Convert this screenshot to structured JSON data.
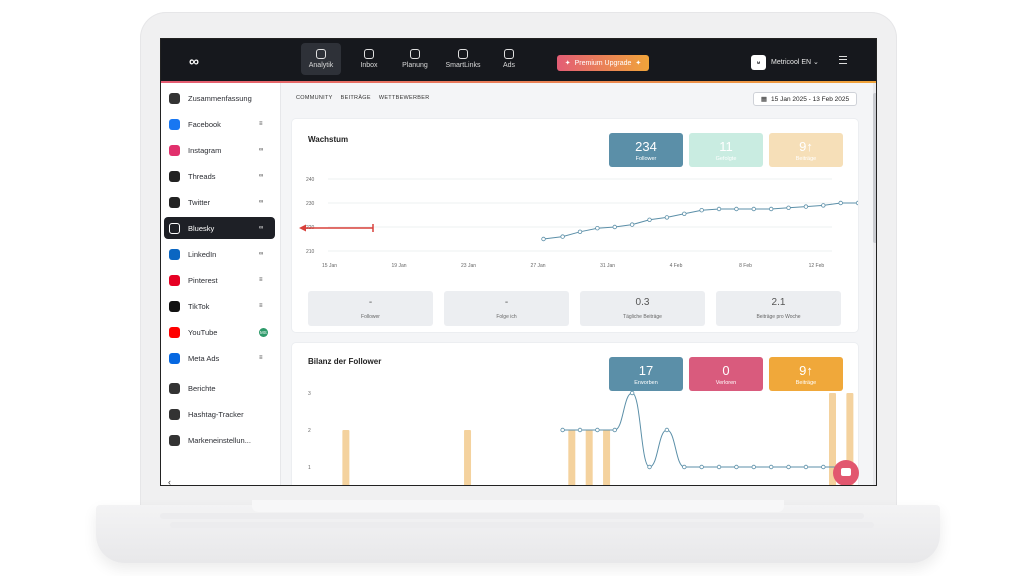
{
  "app": {
    "logo": "∞",
    "nav": [
      {
        "label": "Analytik",
        "icon": "analytics-icon",
        "active": true
      },
      {
        "label": "Inbox",
        "icon": "inbox-icon",
        "active": false
      },
      {
        "label": "Planung",
        "icon": "calendar-icon",
        "active": false
      },
      {
        "label": "SmartLinks",
        "icon": "link-icon",
        "active": false
      },
      {
        "label": "Ads",
        "icon": "megaphone-icon",
        "active": false
      }
    ],
    "premium_label": "Premium Upgrade",
    "account": {
      "name": "Metricool EN",
      "avatar_text": "M"
    }
  },
  "sidebar": {
    "items": [
      {
        "label": "Zusammenfassung",
        "icon": "clipboard-icon",
        "color": "#333333",
        "right": ""
      },
      {
        "label": "Facebook",
        "icon": "facebook-icon",
        "color": "#1877f2",
        "right": "≡"
      },
      {
        "label": "Instagram",
        "icon": "instagram-icon",
        "color": "#e1306c",
        "right": "∞"
      },
      {
        "label": "Threads",
        "icon": "threads-icon",
        "color": "#222222",
        "right": "∞"
      },
      {
        "label": "Twitter",
        "icon": "x-icon",
        "color": "#222222",
        "right": "∞"
      },
      {
        "label": "Bluesky",
        "icon": "butterfly-icon",
        "color": "#ffffff",
        "right": "∞",
        "active": true
      },
      {
        "label": "LinkedIn",
        "icon": "linkedin-icon",
        "color": "#0a66c2",
        "right": "∞"
      },
      {
        "label": "Pinterest",
        "icon": "pinterest-icon",
        "color": "#e60023",
        "right": "≡"
      },
      {
        "label": "TikTok",
        "icon": "tiktok-icon",
        "color": "#111111",
        "right": "≡"
      },
      {
        "label": "YouTube",
        "icon": "youtube-icon",
        "color": "#ff0000",
        "right": "MS"
      },
      {
        "label": "Meta Ads",
        "icon": "meta-icon",
        "color": "#0668e1",
        "right": "≡"
      },
      {
        "label": "Berichte",
        "icon": "report-icon",
        "color": "#333333",
        "right": ""
      },
      {
        "label": "Hashtag-Tracker",
        "icon": "hashtag-icon",
        "color": "#333333",
        "right": ""
      },
      {
        "label": "Markeneinstellun...",
        "icon": "sliders-icon",
        "color": "#333333",
        "right": ""
      }
    ],
    "collapse": "‹"
  },
  "main": {
    "tabs": [
      "COMMUNITY",
      "BEITRÄGE",
      "WETTBEWERBER"
    ],
    "date_range": "15 Jan 2025 - 13 Feb 2025",
    "growth": {
      "title": "Wachstum",
      "kpis": [
        {
          "value": "234",
          "label": "Follower",
          "color": "#5b8fa8"
        },
        {
          "value": "11",
          "label": "Gefolgte",
          "color": "#c9ece1"
        },
        {
          "value": "9↑",
          "label": "Beiträge",
          "color": "#f6dfb8"
        }
      ],
      "stats": [
        {
          "value": "-",
          "label": "Follower"
        },
        {
          "value": "-",
          "label": "Folge ich"
        },
        {
          "value": "0.3",
          "label": "Tägliche Beiträge"
        },
        {
          "value": "2.1",
          "label": "Beiträge pro Woche"
        }
      ]
    },
    "balance": {
      "title": "Bilanz der Follower",
      "kpis": [
        {
          "value": "17",
          "label": "Erworben",
          "color": "#5b8fa8"
        },
        {
          "value": "0",
          "label": "Verloren",
          "color": "#d95b7d"
        },
        {
          "value": "9↑",
          "label": "Beiträge",
          "color": "#f0a83a"
        }
      ]
    }
  },
  "chart_data": [
    {
      "type": "line",
      "title": "Wachstum",
      "x": [
        "15 Jan",
        "19 Jan",
        "23 Jan",
        "27 Jan",
        "31 Jan",
        "4 Feb",
        "8 Feb",
        "12 Feb"
      ],
      "ylim": [
        210,
        240
      ],
      "yticks": [
        210,
        220,
        230,
        240
      ],
      "series": [
        {
          "name": "Follower",
          "points": [
            [
              27.4,
              215
            ],
            [
              28.5,
              216
            ],
            [
              29.5,
              218
            ],
            [
              30.5,
              219.5
            ],
            [
              31.5,
              220
            ],
            [
              32.5,
              221
            ],
            [
              33.5,
              223
            ],
            [
              34.5,
              224
            ],
            [
              35.5,
              225.5
            ],
            [
              36.5,
              227
            ],
            [
              37.5,
              227.5
            ],
            [
              38.5,
              227.5
            ],
            [
              39.5,
              227.5
            ],
            [
              40.5,
              227.5
            ],
            [
              41.5,
              228
            ],
            [
              42.5,
              228.5
            ],
            [
              43.5,
              229
            ],
            [
              44.5,
              230
            ],
            [
              45.5,
              230
            ]
          ]
        }
      ]
    },
    {
      "type": "bar",
      "title": "Bilanz der Follower",
      "ylim": [
        1,
        3
      ],
      "yticks": [
        1,
        2,
        3
      ],
      "bars": [
        [
          16,
          2
        ],
        [
          23,
          2
        ],
        [
          29,
          2
        ],
        [
          30,
          2
        ],
        [
          31,
          2
        ],
        [
          44,
          3
        ],
        [
          45,
          3
        ]
      ],
      "line": [
        [
          28.5,
          2
        ],
        [
          29.5,
          2
        ],
        [
          30.5,
          2
        ],
        [
          31.5,
          2
        ],
        [
          32.5,
          3
        ],
        [
          33.5,
          1
        ],
        [
          34.5,
          2
        ],
        [
          35.5,
          1
        ],
        [
          36.5,
          1
        ],
        [
          37.5,
          1
        ],
        [
          38.5,
          1
        ],
        [
          39.5,
          1
        ],
        [
          40.5,
          1
        ],
        [
          41.5,
          1
        ],
        [
          42.5,
          1
        ],
        [
          43.5,
          1
        ],
        [
          44.5,
          1
        ]
      ]
    }
  ]
}
